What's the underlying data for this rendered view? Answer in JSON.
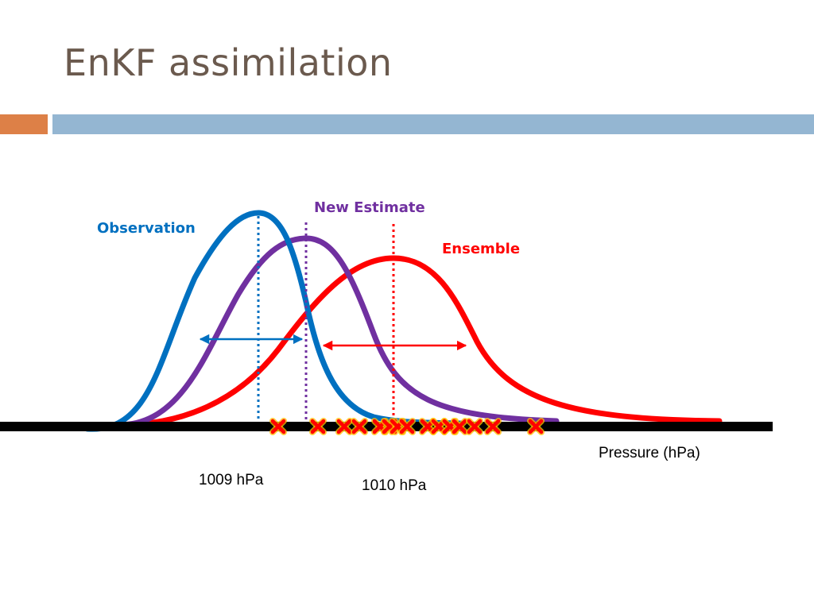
{
  "slide": {
    "title": "EnKF assimilation"
  },
  "diagram": {
    "labels": {
      "observation": "Observation",
      "new_estimate": "New Estimate",
      "ensemble": "Ensemble"
    },
    "axis": {
      "label": "Pressure (hPa)",
      "tick_1009": "1009 hPa",
      "tick_1010": "1010 hPa"
    },
    "colors": {
      "observation": "#0070c0",
      "new_estimate": "#7030a0",
      "ensemble": "#ff0000",
      "axis": "#000000",
      "marker_fill": "#ff0000",
      "marker_glow": "#ffc000"
    },
    "ensemble_member_count": 15
  }
}
